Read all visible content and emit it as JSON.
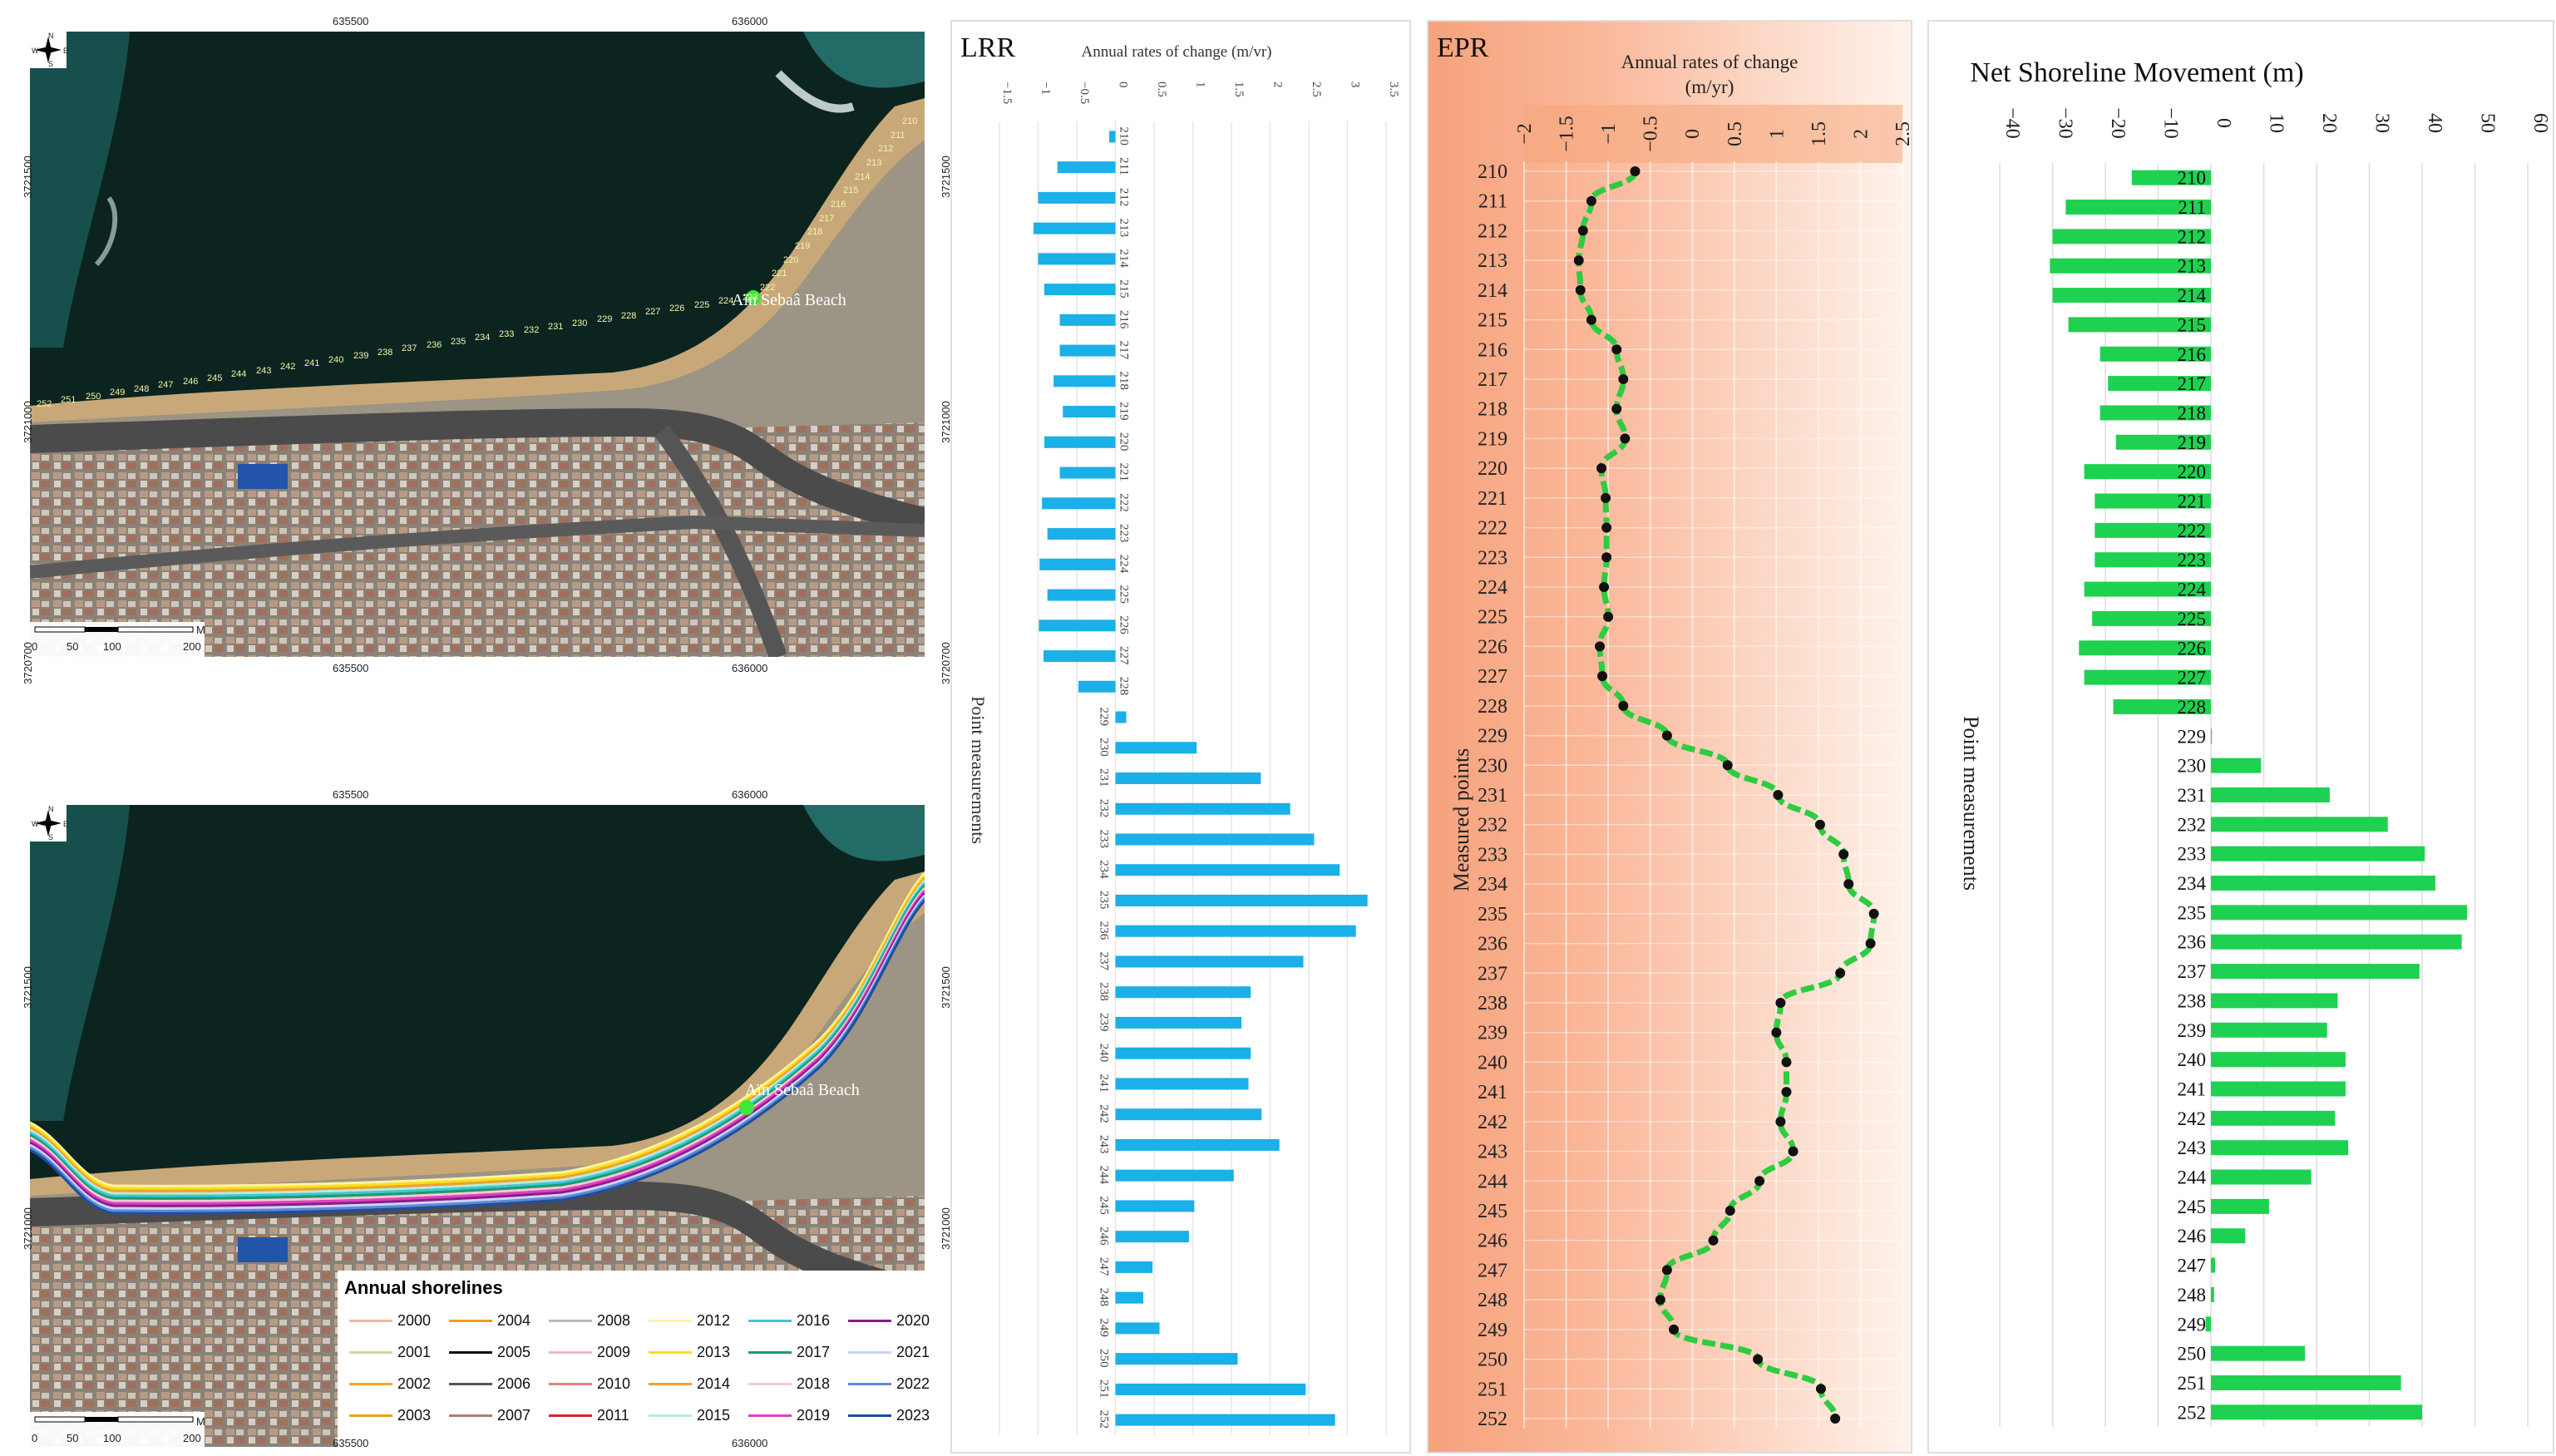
{
  "map_top": {
    "place_label": "Aïn Sebaâ Beach",
    "x_ticks": [
      "635500",
      "636000"
    ],
    "y_ticks": [
      "3721500",
      "3721000",
      "3720700"
    ],
    "scale": {
      "labels": [
        "0",
        "50",
        "100",
        "200"
      ],
      "unit": "M"
    },
    "compass": {
      "n": "N",
      "s": "S",
      "e": "E",
      "w": "W"
    },
    "point_labels": [
      "210",
      "211",
      "212",
      "213",
      "214",
      "215",
      "216",
      "217",
      "218",
      "219",
      "220",
      "221",
      "222",
      "223",
      "224",
      "225",
      "226",
      "227",
      "228",
      "229",
      "230",
      "231",
      "232",
      "233",
      "234",
      "235",
      "236",
      "237",
      "238",
      "239",
      "240",
      "241",
      "242",
      "243",
      "244",
      "245",
      "246",
      "247",
      "248",
      "249",
      "250",
      "251",
      "252"
    ]
  },
  "map_bottom": {
    "place_label": "Aïn Sebaâ Beach",
    "x_ticks": [
      "635500",
      "636000"
    ],
    "y_ticks": [
      "3721500",
      "3721000"
    ],
    "scale": {
      "labels": [
        "0",
        "50",
        "100",
        "200"
      ],
      "unit": "M"
    },
    "compass": {
      "n": "N",
      "s": "S",
      "e": "E",
      "w": "W"
    },
    "legend_title": "Annual shorelines",
    "legend": [
      {
        "year": "2000",
        "color": "#f2b8a2"
      },
      {
        "year": "2001",
        "color": "#d8d4a0"
      },
      {
        "year": "2002",
        "color": "#f5a623"
      },
      {
        "year": "2003",
        "color": "#e8a317"
      },
      {
        "year": "2004",
        "color": "#f39c12"
      },
      {
        "year": "2005",
        "color": "#111111"
      },
      {
        "year": "2006",
        "color": "#555555"
      },
      {
        "year": "2007",
        "color": "#a88070"
      },
      {
        "year": "2008",
        "color": "#b9b9b9"
      },
      {
        "year": "2009",
        "color": "#f5b7c5"
      },
      {
        "year": "2010",
        "color": "#e88080"
      },
      {
        "year": "2011",
        "color": "#d62728"
      },
      {
        "year": "2012",
        "color": "#fff3a0"
      },
      {
        "year": "2013",
        "color": "#f7e01a"
      },
      {
        "year": "2014",
        "color": "#f0a030"
      },
      {
        "year": "2015",
        "color": "#b8ecd8"
      },
      {
        "year": "2016",
        "color": "#3cc8d8"
      },
      {
        "year": "2017",
        "color": "#1a9e6e"
      },
      {
        "year": "2018",
        "color": "#f7c8d8"
      },
      {
        "year": "2019",
        "color": "#e040c0"
      },
      {
        "year": "2020",
        "color": "#8b1a8b"
      },
      {
        "year": "2021",
        "color": "#c8d4f8"
      },
      {
        "year": "2022",
        "color": "#5b8ad8"
      },
      {
        "year": "2023",
        "color": "#1a50a0"
      }
    ]
  },
  "chart_data": [
    {
      "id": "lrr",
      "type": "bar",
      "title": "LRR",
      "xlabel": "Annual rates of change (m/vr)",
      "ylabel": "Point measurements",
      "xlim": [
        -1.5,
        3.5
      ],
      "x_ticks": [
        "−1.5",
        "−1",
        "−0.5",
        "0",
        "0.5",
        "1",
        "1.5",
        "2",
        "2.5",
        "3",
        "3.5"
      ],
      "categories": [
        "210",
        "211",
        "212",
        "213",
        "214",
        "215",
        "216",
        "217",
        "218",
        "219",
        "220",
        "221",
        "222",
        "223",
        "224",
        "225",
        "226",
        "227",
        "228",
        "229",
        "230",
        "231",
        "232",
        "233",
        "234",
        "235",
        "236",
        "237",
        "238",
        "239",
        "240",
        "241",
        "242",
        "243",
        "244",
        "245",
        "246",
        "247",
        "248",
        "249",
        "250",
        "251",
        "252"
      ],
      "values": [
        -0.08,
        -0.75,
        -1.0,
        -1.06,
        -1.0,
        -0.92,
        -0.72,
        -0.72,
        -0.8,
        -0.68,
        -0.92,
        -0.72,
        -0.95,
        -0.88,
        -0.98,
        -0.88,
        -0.99,
        -0.93,
        -0.48,
        0.14,
        1.05,
        1.88,
        2.26,
        2.57,
        2.9,
        3.26,
        3.11,
        2.43,
        1.75,
        1.63,
        1.75,
        1.72,
        1.89,
        2.12,
        1.53,
        1.02,
        0.95,
        0.48,
        0.36,
        0.57,
        1.58,
        2.46,
        2.84
      ],
      "color": "#1ab0e8",
      "grid": true
    },
    {
      "id": "epr",
      "type": "line",
      "title": "EPR",
      "xlabel": "Annual rates of change (m/yr)",
      "ylabel": "Measured points",
      "xlim": [
        -2,
        2.5
      ],
      "x_ticks": [
        "−2",
        "−1.5",
        "−1",
        "−0.5",
        "0",
        "0.5",
        "1",
        "1.5",
        "2",
        "2.5"
      ],
      "categories": [
        "210",
        "211",
        "212",
        "213",
        "214",
        "215",
        "216",
        "217",
        "218",
        "219",
        "220",
        "221",
        "222",
        "223",
        "224",
        "225",
        "226",
        "227",
        "228",
        "229",
        "230",
        "231",
        "232",
        "233",
        "234",
        "235",
        "236",
        "237",
        "238",
        "239",
        "240",
        "241",
        "242",
        "243",
        "244",
        "245",
        "246",
        "247",
        "248",
        "249",
        "250",
        "251",
        "252"
      ],
      "values": [
        -0.68,
        -1.2,
        -1.3,
        -1.35,
        -1.33,
        -1.2,
        -0.9,
        -0.82,
        -0.9,
        -0.8,
        -1.08,
        -1.03,
        -1.02,
        -1.02,
        -1.05,
        -1.0,
        -1.1,
        -1.07,
        -0.82,
        -0.3,
        0.42,
        1.02,
        1.52,
        1.8,
        1.86,
        2.16,
        2.12,
        1.76,
        1.05,
        1.0,
        1.12,
        1.12,
        1.05,
        1.2,
        0.8,
        0.45,
        0.25,
        -0.3,
        -0.38,
        -0.22,
        0.78,
        1.53,
        1.7
      ],
      "color": "#2ecc40",
      "grid": true
    },
    {
      "id": "nsm",
      "type": "bar",
      "title": "Net Shoreline Movement (m)",
      "ylabel": "Point measurements",
      "xlim": [
        -40,
        60
      ],
      "x_ticks": [
        "−40",
        "−30",
        "−20",
        "−10",
        "0",
        "10",
        "20",
        "30",
        "40",
        "50",
        "60"
      ],
      "categories": [
        "210",
        "211",
        "212",
        "213",
        "214",
        "215",
        "216",
        "217",
        "218",
        "219",
        "220",
        "221",
        "222",
        "223",
        "224",
        "225",
        "226",
        "227",
        "228",
        "229",
        "230",
        "231",
        "232",
        "233",
        "234",
        "235",
        "236",
        "237",
        "238",
        "239",
        "240",
        "241",
        "242",
        "243",
        "244",
        "245",
        "246",
        "247",
        "248",
        "249",
        "250",
        "251",
        "252"
      ],
      "values": [
        -15,
        -27.5,
        -30,
        -30.5,
        -30,
        -27,
        -21,
        -19.5,
        -21,
        -18,
        -24,
        -22,
        -22,
        -22,
        -24,
        -22.5,
        -25,
        -24,
        -18.5,
        0,
        9.5,
        22.5,
        33.5,
        40.5,
        42.5,
        48.5,
        47.5,
        39.5,
        24,
        22,
        25.5,
        25.5,
        23.5,
        26,
        19,
        11,
        6.5,
        0.8,
        0.6,
        -1,
        17.8,
        36,
        40
      ],
      "color": "#1fd150",
      "grid": true
    }
  ]
}
